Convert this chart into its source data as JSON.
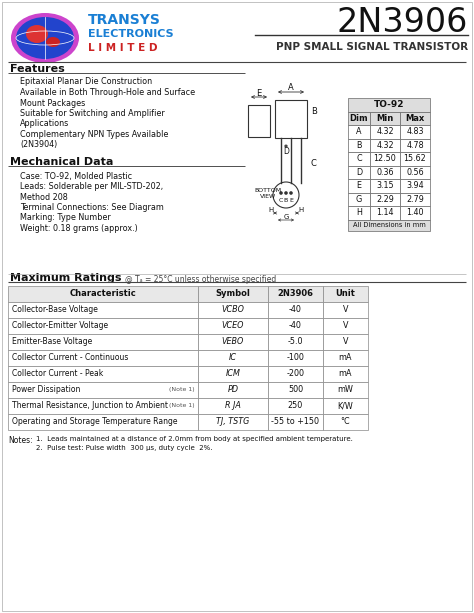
{
  "title": "2N3906",
  "subtitle": "PNP SMALL SIGNAL TRANSISTOR",
  "features_title": "Features",
  "features": [
    "Epitaxial Planar Die Construction",
    "Available in Both Through-Hole and Surface",
    "Mount Packages",
    "Suitable for Switching and Amplifier",
    "Applications",
    "Complementary NPN Types Available",
    "(2N3904)"
  ],
  "mech_title": "Mechanical Data",
  "mech_data": [
    "Case: TO-92, Molded Plastic",
    "Leads: Solderable per MIL-STD-202,",
    "Method 208",
    "Terminal Connections: See Diagram",
    "Marking: Type Number",
    "Weight: 0.18 grams (approx.)"
  ],
  "dim_rows": [
    [
      "A",
      "4.32",
      "4.83"
    ],
    [
      "B",
      "4.32",
      "4.78"
    ],
    [
      "C",
      "12.50",
      "15.62"
    ],
    [
      "D",
      "0.36",
      "0.56"
    ],
    [
      "E",
      "3.15",
      "3.94"
    ],
    [
      "G",
      "2.29",
      "2.79"
    ],
    [
      "H",
      "1.14",
      "1.40"
    ]
  ],
  "max_ratings_title": "Maximum Ratings",
  "char_data": [
    [
      "Collector-Base Voltage",
      "VCBO",
      "-40",
      "V",
      ""
    ],
    [
      "Collector-Emitter Voltage",
      "VCEO",
      "-40",
      "V",
      ""
    ],
    [
      "Emitter-Base Voltage",
      "VEBO",
      "-5.0",
      "V",
      ""
    ],
    [
      "Collector Current - Continuous",
      "IC",
      "-100",
      "mA",
      ""
    ],
    [
      "Collector Current - Peak",
      "ICM",
      "-200",
      "mA",
      ""
    ],
    [
      "Power Dissipation",
      "PD",
      "500",
      "mW",
      "(Note 1)"
    ],
    [
      "Thermal Resistance, Junction to Ambient",
      "R JA",
      "250",
      "K/W",
      "(Note 1)"
    ],
    [
      "Operating and Storage Temperature Range",
      "TJ, TSTG",
      "-55 to +150",
      "°C",
      ""
    ]
  ],
  "notes": [
    "1.  Leads maintained at a distance of 2.0mm from body at specified ambient temperature.",
    "2.  Pulse test: Pulse width  300 μs, duty cycle  2%."
  ],
  "bg_color": "#ffffff",
  "blue_color": "#1a7fd4",
  "red_color": "#cc2222",
  "dark": "#111111",
  "gray": "#888888",
  "light_gray": "#eeeeee"
}
